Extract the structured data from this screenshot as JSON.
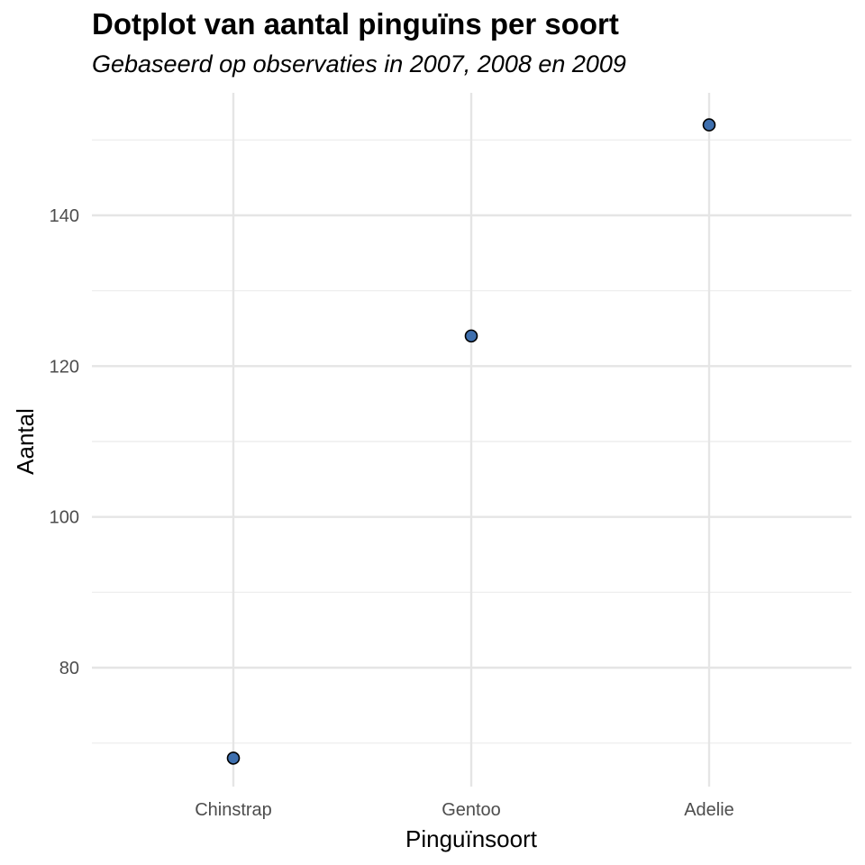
{
  "chart_data": {
    "type": "scatter",
    "title": "Dotplot van aantal pinguïns per soort",
    "subtitle": "Gebaseerd op observaties in 2007, 2008 en 2009",
    "xlabel": "Pinguïnsoort",
    "ylabel": "Aantal",
    "categories": [
      "Chinstrap",
      "Gentoo",
      "Adelie"
    ],
    "values": [
      68,
      124,
      152
    ],
    "ylim": [
      65,
      156
    ],
    "yticks": [
      80,
      100,
      120,
      140
    ],
    "grid": true,
    "point_fill": "#3e6fae",
    "point_stroke": "#000000"
  }
}
